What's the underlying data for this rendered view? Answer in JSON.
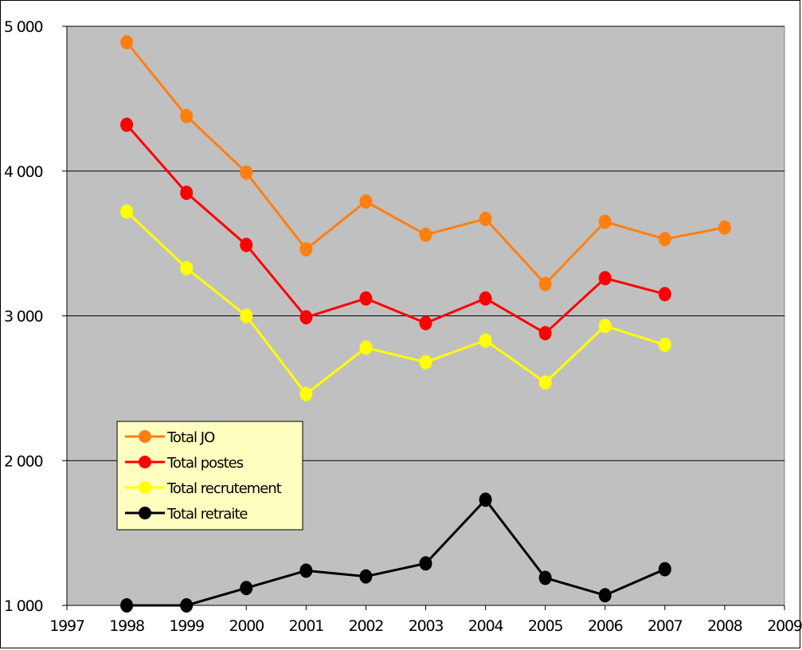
{
  "chart_data": {
    "type": "line",
    "title": "",
    "xlabel": "",
    "ylabel": "",
    "xlim": [
      1997,
      2009
    ],
    "ylim": [
      1000,
      5000
    ],
    "x_ticks": [
      1997,
      1998,
      1999,
      2000,
      2001,
      2002,
      2003,
      2004,
      2005,
      2006,
      2007,
      2008,
      2009
    ],
    "y_ticks": [
      1000,
      2000,
      3000,
      4000,
      5000
    ],
    "y_tick_labels": [
      "1 000",
      "2 000",
      "3 000",
      "4 000",
      "5 000"
    ],
    "grid": "horizontal",
    "plot_background": "#c0c0c0",
    "legend_position": "bottom-left inside plot",
    "legend_background": "#ffffc0",
    "series": [
      {
        "name": "Total JO",
        "color": "#ff7f11",
        "x": [
          1998,
          1999,
          2000,
          2001,
          2002,
          2003,
          2004,
          2005,
          2006,
          2007,
          2008
        ],
        "values": [
          4890,
          4380,
          3990,
          3460,
          3790,
          3560,
          3670,
          3220,
          3650,
          3530,
          3610
        ]
      },
      {
        "name": "Total postes",
        "color": "#ff0000",
        "x": [
          1998,
          1999,
          2000,
          2001,
          2002,
          2003,
          2004,
          2005,
          2006,
          2007
        ],
        "values": [
          4320,
          3850,
          3490,
          2990,
          3120,
          2950,
          3120,
          2880,
          3260,
          3150
        ]
      },
      {
        "name": "Total recrutement",
        "color": "#ffff00",
        "x": [
          1998,
          1999,
          2000,
          2001,
          2002,
          2003,
          2004,
          2005,
          2006,
          2007
        ],
        "values": [
          3720,
          3330,
          3000,
          2460,
          2780,
          2680,
          2830,
          2540,
          2930,
          2800
        ]
      },
      {
        "name": "Total retraite",
        "color": "#000000",
        "x": [
          1998,
          1999,
          2000,
          2001,
          2002,
          2003,
          2004,
          2005,
          2006,
          2007
        ],
        "values": [
          1000,
          1000,
          1120,
          1240,
          1200,
          1290,
          1730,
          1190,
          1070,
          1250
        ]
      }
    ]
  }
}
